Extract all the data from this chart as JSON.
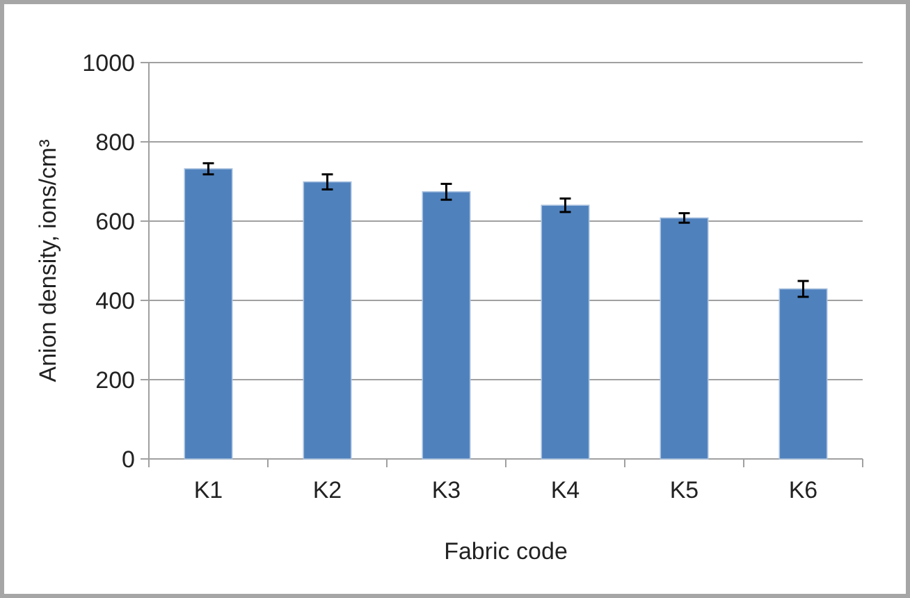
{
  "chart_data": {
    "type": "bar",
    "xlabel": "Fabric code",
    "ylabel": "Anion density, ions/cm³",
    "categories": [
      "K1",
      "K2",
      "K3",
      "K4",
      "K5",
      "K6"
    ],
    "values": [
      732,
      699,
      674,
      640,
      608,
      429
    ],
    "errors": [
      14,
      19,
      20,
      17,
      12,
      20
    ],
    "color": "#4f81bd",
    "ylim": [
      0,
      1000
    ],
    "yticks": [
      0,
      200,
      400,
      600,
      800,
      1000
    ],
    "grid": "y"
  }
}
